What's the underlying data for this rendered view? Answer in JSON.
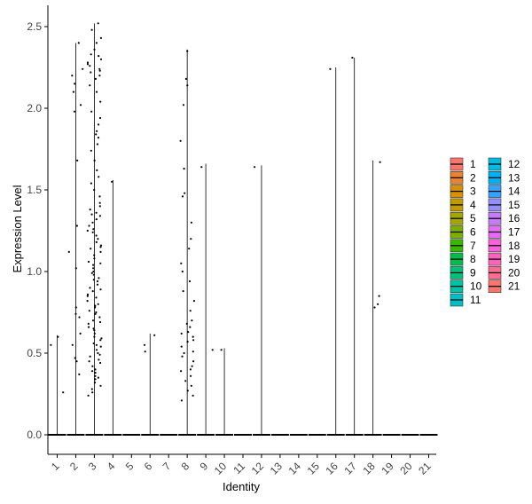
{
  "chart_data": {
    "type": "violin",
    "xlabel": "Identity",
    "ylabel": "Expression Level",
    "categories": [
      "1",
      "2",
      "3",
      "4",
      "5",
      "6",
      "7",
      "8",
      "9",
      "10",
      "11",
      "12",
      "13",
      "14",
      "15",
      "16",
      "17",
      "18",
      "19",
      "20",
      "21"
    ],
    "ylim": [
      -0.12,
      2.62
    ],
    "yticks": [
      "0.0",
      "0.5",
      "1.0",
      "1.5",
      "2.0",
      "2.5"
    ],
    "legend_position": "right",
    "colors": [
      "#F8766D",
      "#EA8331",
      "#D89000",
      "#C09B00",
      "#A3A500",
      "#7CAE00",
      "#39B600",
      "#00BB4E",
      "#00BF7D",
      "#00C1A3",
      "#00BFC4",
      "#00BAE0",
      "#00B0F6",
      "#35A2FF",
      "#9590FF",
      "#C77CFF",
      "#E76BF3",
      "#FA62DB",
      "#FF62BC",
      "#FF6C91",
      "#F8766D"
    ],
    "violin_max": [
      0.61,
      2.4,
      2.52,
      1.56,
      0.0,
      0.62,
      0.0,
      2.36,
      1.66,
      0.53,
      0.0,
      1.65,
      0.0,
      0.0,
      0.0,
      2.25,
      2.31,
      1.68,
      0.0,
      0.0,
      0.0
    ],
    "points": {
      "1": [
        0.26,
        0.55,
        0.6
      ],
      "2": [
        0.37,
        0.45,
        0.47,
        0.55,
        0.62,
        0.72,
        0.74,
        0.78,
        1.02,
        1.12,
        1.28,
        1.68,
        1.98,
        2.02,
        2.1,
        2.15,
        2.2,
        2.24,
        2.4
      ],
      "3": [
        0.24,
        0.26,
        0.28,
        0.3,
        0.32,
        0.34,
        0.36,
        0.38,
        0.4,
        0.42,
        0.44,
        0.46,
        0.48,
        0.5,
        0.52,
        0.54,
        0.56,
        0.58,
        0.6,
        0.62,
        0.64,
        0.66,
        0.68,
        0.7,
        0.72,
        0.74,
        0.76,
        0.78,
        0.8,
        0.82,
        0.84,
        0.86,
        0.88,
        0.9,
        0.92,
        0.94,
        0.96,
        0.98,
        1.0,
        1.02,
        1.04,
        1.06,
        1.08,
        1.1,
        1.12,
        1.14,
        1.16,
        1.18,
        1.2,
        1.22,
        1.24,
        1.26,
        1.28,
        1.3,
        1.32,
        1.34,
        1.36,
        1.38,
        1.4,
        1.42,
        1.46,
        1.5,
        1.54,
        1.58,
        1.62,
        1.68,
        1.74,
        1.78,
        1.82,
        1.84,
        1.86,
        1.9,
        1.94,
        1.98,
        2.04,
        2.1,
        2.14,
        2.18,
        2.2,
        2.22,
        2.24,
        2.26,
        2.28,
        2.3,
        2.32,
        2.36,
        2.4,
        2.43,
        2.48,
        2.52,
        0.35,
        0.45,
        0.55,
        0.65,
        0.75,
        0.85,
        0.95,
        1.05,
        1.15,
        1.25,
        1.35,
        0.39,
        0.49,
        0.59,
        0.69,
        0.79,
        0.89,
        0.99,
        2.23,
        2.27,
        2.33
      ],
      "4": [
        1.55
      ],
      "6": [
        0.51,
        0.55,
        0.61
      ],
      "8": [
        0.21,
        0.24,
        0.27,
        0.3,
        0.33,
        0.36,
        0.39,
        0.42,
        0.45,
        0.48,
        0.51,
        0.54,
        0.57,
        0.6,
        0.63,
        0.66,
        0.7,
        0.76,
        0.82,
        0.88,
        0.94,
        1.0,
        1.05,
        1.14,
        1.2,
        1.3,
        1.46,
        1.48,
        1.63,
        1.8,
        2.02,
        2.14,
        2.18,
        2.35,
        0.4,
        0.5,
        0.58,
        0.62,
        0.68
      ],
      "9": [
        0.52,
        1.64
      ],
      "10": [
        0.52
      ],
      "12": [
        1.64
      ],
      "16": [
        2.24
      ],
      "17": [
        2.31
      ],
      "18": [
        0.78,
        0.8,
        0.85,
        1.67
      ]
    }
  }
}
